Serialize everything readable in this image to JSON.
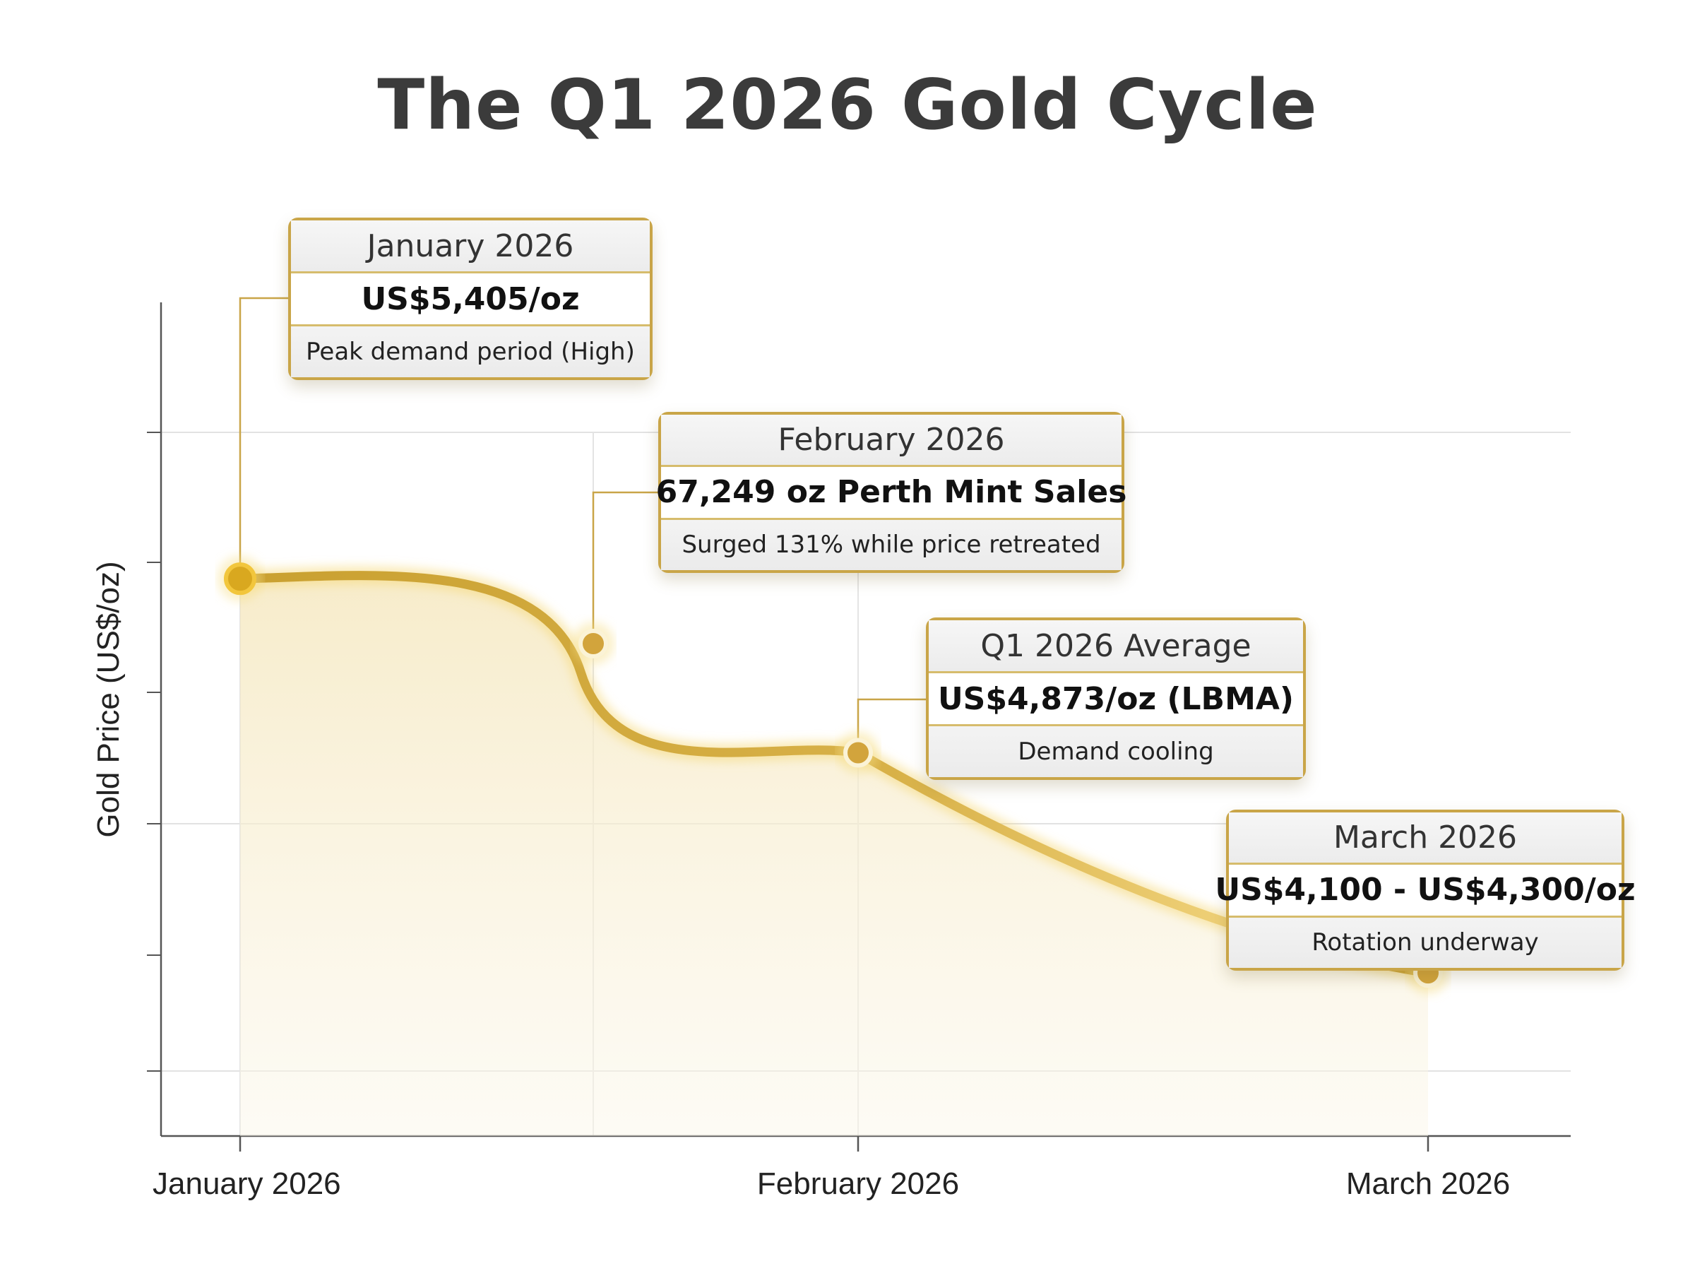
{
  "chart_data": {
    "type": "line",
    "title": "The Q1 2026 Gold Cycle",
    "ylabel": "Gold Price (US$/oz)",
    "xlabel": "",
    "x_ticks": [
      "January 2026",
      "February 2026",
      "March 2026"
    ],
    "ylim": [
      3900,
      5900
    ],
    "grid": true,
    "series": [
      {
        "points": [
          {
            "x": "January 2026",
            "y": 5405
          },
          {
            "x": "February 2026",
            "y": 4873
          },
          {
            "x": "March 2026",
            "y": 4200
          }
        ]
      }
    ],
    "annotations": [
      {
        "heading": "January 2026",
        "value": "US$5,405/oz",
        "note": "Peak demand period (High)"
      },
      {
        "heading": "February 2026",
        "value": "67,249 oz Perth Mint Sales",
        "note": "Surged 131% while price retreated"
      },
      {
        "heading": "Q1 2026 Average",
        "value": "US$4,873/oz (LBMA)",
        "note": "Demand cooling"
      },
      {
        "heading": "March 2026",
        "value": "US$4,100 - US$4,300/oz",
        "note": "Rotation underway"
      }
    ],
    "colors": {
      "line": "#c9a030",
      "marker": "#d4a838",
      "fill": "#f7eccc",
      "callout_border": "#c9a548"
    }
  }
}
